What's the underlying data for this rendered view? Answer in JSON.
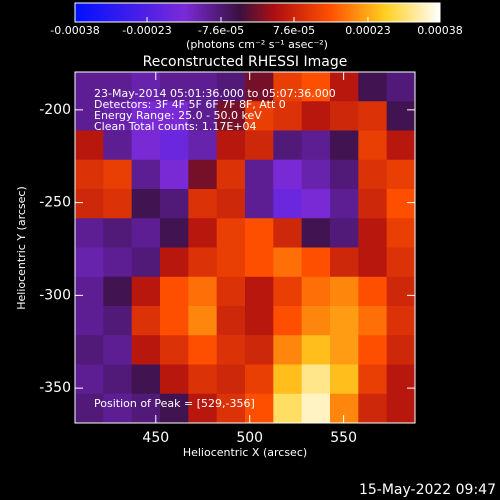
{
  "chart_data": {
    "type": "image",
    "title": "Reconstructed RHESSI Image",
    "x_label": "Heliocentric X (arcsec)",
    "y_label": "Heliocentric Y (arcsec)",
    "colorbar_label": "(photons cm⁻² s⁻¹ asec⁻²)",
    "colorbar_lim": [
      -0.00038,
      0.00038
    ],
    "colorbar_ticks": [
      -0.00038,
      -0.00023,
      {
        "value": -7.6e-05,
        "label": "-7.6e-05"
      },
      {
        "value": 7.6e-05,
        "label": "7.6e-05"
      },
      0.00023,
      0.00038
    ],
    "annotations": [
      "23-May-2014 05:01:36.000 to 05:07:36.000",
      "Detectors: 3F 4F 5F 6F 7F 8F, Att 0",
      "Energy Range: 25.0 - 50.0 keV",
      "Clean     Total counts: 1.17E+04"
    ],
    "peak_label": "Position of Peak = [529,-356]",
    "timestamp": "15-May-2022 09:47",
    "xlim": [
      407,
      588
    ],
    "ylim": [
      -368.8,
      -179.6
    ],
    "xticks": [
      450,
      500,
      550
    ],
    "yticks": [
      -200,
      -250,
      -300,
      -350
    ],
    "z": [
      [
        -0.0001,
        -0.0001,
        -0.00012,
        -0.0001,
        -0.0001,
        -8e-05,
        0,
        0.00012,
        0.00015,
        5e-05,
        -5e-05,
        -8e-05
      ],
      [
        -0.0001,
        -0.00012,
        -0.00015,
        -0.00015,
        -0.0001,
        0,
        0.00012,
        0.0001,
        5e-05,
        8e-05,
        0.0001,
        -5e-05
      ],
      [
        5e-05,
        -0.0001,
        -0.00015,
        -0.00018,
        -0.00012,
        5e-05,
        8e-05,
        -8e-05,
        -0.0001,
        -5e-05,
        0.00012,
        5e-05
      ],
      [
        0.0001,
        0.00012,
        -0.0001,
        -0.00015,
        0,
        0.0001,
        -0.0001,
        -0.00015,
        -0.00012,
        -8e-05,
        0.0001,
        0.00012
      ],
      [
        8e-05,
        0.0001,
        -5e-05,
        -8e-05,
        0.0001,
        8e-05,
        -0.0001,
        -0.00018,
        -0.00015,
        -0.0001,
        8e-05,
        0.00015
      ],
      [
        -0.0001,
        -8e-05,
        -0.0001,
        -5e-05,
        5e-05,
        0.00012,
        0.00015,
        8e-05,
        -5e-05,
        -8e-05,
        5e-05,
        0.00012
      ],
      [
        -0.00012,
        -0.0001,
        -8e-05,
        5e-05,
        0.0001,
        0.00012,
        0.00015,
        0.00018,
        0.00015,
        8e-05,
        5e-05,
        0.0001
      ],
      [
        -0.0001,
        -5e-05,
        5e-05,
        0.00015,
        0.00018,
        0.0001,
        5e-05,
        0.00012,
        0.00018,
        0.0002,
        0.00015,
        8e-05
      ],
      [
        -0.0001,
        -8e-05,
        0.0001,
        0.00015,
        0.0002,
        8e-05,
        5e-05,
        0.00015,
        0.0002,
        0.00022,
        0.00018,
        0.0001
      ],
      [
        -8e-05,
        -0.0001,
        5e-05,
        0.0001,
        0.00015,
        0.0001,
        8e-05,
        0.0002,
        0.00025,
        0.00022,
        0.00015,
        8e-05
      ],
      [
        -0.0001,
        -8e-05,
        -5e-05,
        5e-05,
        0.0001,
        8e-05,
        0.00012,
        0.00025,
        0.00032,
        0.00025,
        0.00012,
        5e-05
      ],
      [
        -8e-05,
        -0.0001,
        -8e-05,
        -5e-05,
        5e-05,
        0.0001,
        0.00015,
        0.0003,
        0.00035,
        0.0002,
        8e-05,
        5e-05
      ]
    ]
  }
}
